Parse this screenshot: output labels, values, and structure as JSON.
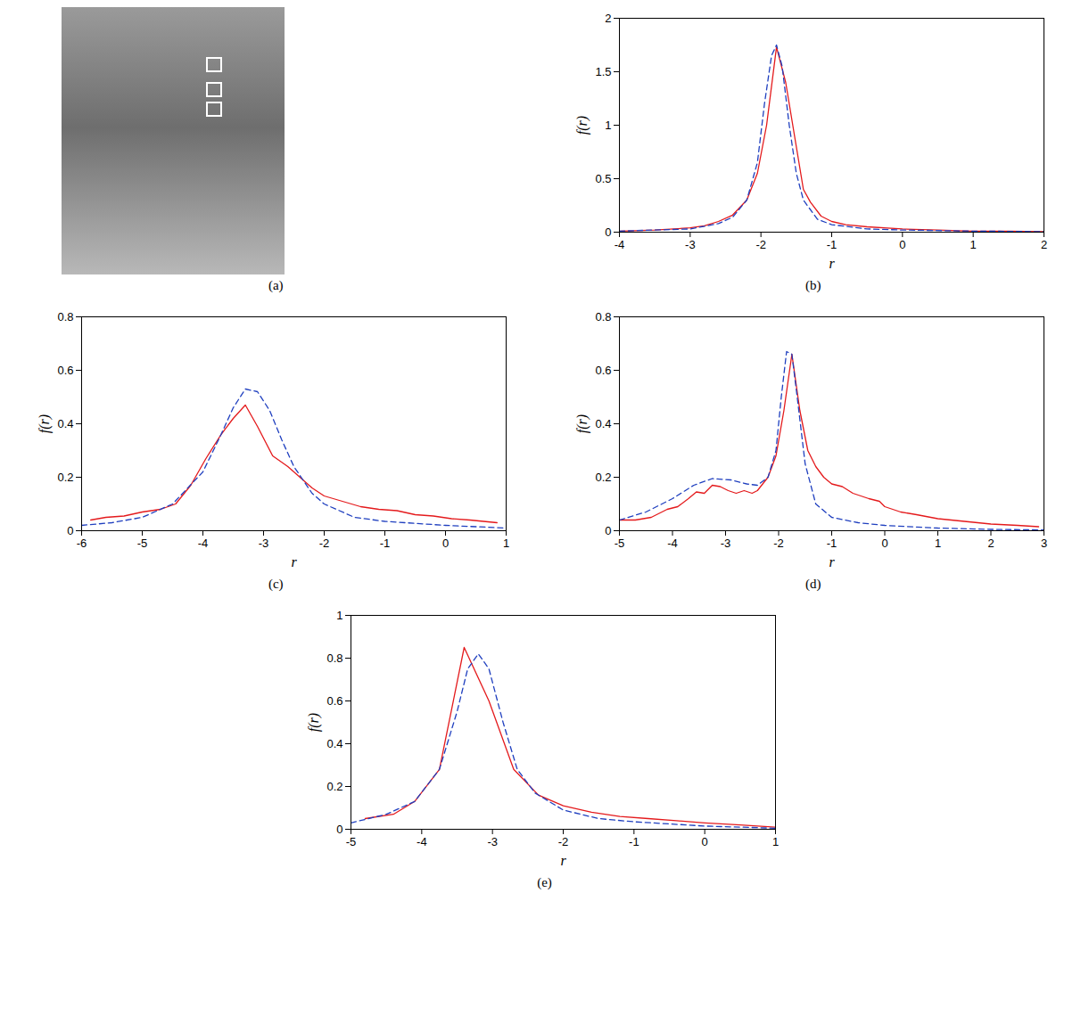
{
  "image": {
    "caption": "(a)"
  },
  "chart_data": [
    {
      "type": "line",
      "caption": "(b)",
      "x_label": "r",
      "y_label": "f(r)",
      "xlim": [
        -4,
        2
      ],
      "xticks": [
        -4,
        -3,
        -2,
        -1,
        0,
        1,
        2
      ],
      "ylim": [
        0,
        2
      ],
      "yticks": [
        0,
        0.5,
        1,
        1.5,
        2
      ],
      "series": [
        {
          "color": "#e41a1c",
          "line_style": "solid",
          "x": [
            -4,
            -3.5,
            -3,
            -2.8,
            -2.6,
            -2.4,
            -2.2,
            -2.05,
            -1.92,
            -1.78,
            -1.65,
            -1.5,
            -1.4,
            -1.3,
            -1.15,
            -1.0,
            -0.8,
            -0.5,
            0,
            0.5,
            1,
            1.5,
            2
          ],
          "values": [
            0.01,
            0.02,
            0.04,
            0.06,
            0.1,
            0.16,
            0.3,
            0.55,
            1.0,
            1.73,
            1.4,
            0.8,
            0.4,
            0.28,
            0.15,
            0.1,
            0.07,
            0.05,
            0.03,
            0.02,
            0.01,
            0.01,
            0.005
          ]
        },
        {
          "color": "#1f3fbf",
          "line_style": "dashed",
          "x": [
            -4,
            -3,
            -2.6,
            -2.4,
            -2.2,
            -2.05,
            -1.95,
            -1.85,
            -1.78,
            -1.7,
            -1.6,
            -1.5,
            -1.4,
            -1.2,
            -1.0,
            -0.5,
            0,
            1,
            2
          ],
          "values": [
            0.01,
            0.03,
            0.08,
            0.14,
            0.3,
            0.65,
            1.2,
            1.65,
            1.75,
            1.55,
            1.0,
            0.55,
            0.3,
            0.12,
            0.07,
            0.03,
            0.02,
            0.01,
            0.005
          ]
        }
      ]
    },
    {
      "type": "line",
      "caption": "(c)",
      "x_label": "r",
      "y_label": "f(r)",
      "xlim": [
        -6,
        1
      ],
      "xticks": [
        -6,
        -5,
        -4,
        -3,
        -2,
        -1,
        0,
        1
      ],
      "ylim": [
        0,
        0.8
      ],
      "yticks": [
        0,
        0.2,
        0.4,
        0.6,
        0.8
      ],
      "series": [
        {
          "color": "#e41a1c",
          "line_style": "solid",
          "x": [
            -5.85,
            -5.6,
            -5.3,
            -5,
            -4.7,
            -4.45,
            -4.2,
            -3.95,
            -3.7,
            -3.5,
            -3.3,
            -3.1,
            -2.85,
            -2.6,
            -2.4,
            -2.2,
            -2.0,
            -1.7,
            -1.4,
            -1.1,
            -0.8,
            -0.5,
            -0.2,
            0.1,
            0.4,
            0.85
          ],
          "values": [
            0.04,
            0.05,
            0.055,
            0.07,
            0.08,
            0.1,
            0.17,
            0.27,
            0.36,
            0.42,
            0.47,
            0.39,
            0.28,
            0.24,
            0.2,
            0.16,
            0.13,
            0.11,
            0.09,
            0.08,
            0.075,
            0.06,
            0.055,
            0.045,
            0.04,
            0.03
          ]
        },
        {
          "color": "#1f3fbf",
          "line_style": "dashed",
          "x": [
            -6,
            -5.5,
            -5,
            -4.5,
            -4,
            -3.7,
            -3.5,
            -3.3,
            -3.1,
            -2.9,
            -2.7,
            -2.5,
            -2.2,
            -2,
            -1.5,
            -1,
            0,
            1
          ],
          "values": [
            0.02,
            0.03,
            0.05,
            0.1,
            0.22,
            0.36,
            0.46,
            0.53,
            0.52,
            0.45,
            0.34,
            0.24,
            0.14,
            0.1,
            0.05,
            0.035,
            0.02,
            0.01
          ]
        }
      ]
    },
    {
      "type": "line",
      "caption": "(d)",
      "x_label": "r",
      "y_label": "f(r)",
      "xlim": [
        -5,
        3
      ],
      "xticks": [
        -5,
        -4,
        -3,
        -2,
        -1,
        0,
        1,
        2,
        3
      ],
      "ylim": [
        0,
        0.8
      ],
      "yticks": [
        0,
        0.2,
        0.4,
        0.6,
        0.8
      ],
      "series": [
        {
          "color": "#e41a1c",
          "line_style": "solid",
          "x": [
            -5,
            -4.7,
            -4.4,
            -4.1,
            -3.9,
            -3.7,
            -3.55,
            -3.4,
            -3.25,
            -3.1,
            -2.95,
            -2.8,
            -2.65,
            -2.5,
            -2.4,
            -2.2,
            -2.05,
            -1.9,
            -1.75,
            -1.6,
            -1.45,
            -1.3,
            -1.15,
            -1.0,
            -0.8,
            -0.6,
            -0.3,
            -0.1,
            0,
            0.3,
            0.6,
            1,
            1.5,
            2,
            2.5,
            2.9
          ],
          "values": [
            0.04,
            0.04,
            0.05,
            0.08,
            0.09,
            0.12,
            0.145,
            0.14,
            0.17,
            0.165,
            0.15,
            0.14,
            0.15,
            0.14,
            0.15,
            0.2,
            0.28,
            0.45,
            0.66,
            0.45,
            0.3,
            0.24,
            0.2,
            0.175,
            0.165,
            0.14,
            0.12,
            0.11,
            0.09,
            0.07,
            0.06,
            0.045,
            0.035,
            0.025,
            0.02,
            0.015
          ]
        },
        {
          "color": "#1f3fbf",
          "line_style": "dashed",
          "x": [
            -5,
            -4.5,
            -4,
            -3.6,
            -3.25,
            -2.9,
            -2.6,
            -2.4,
            -2.2,
            -2.05,
            -1.95,
            -1.85,
            -1.75,
            -1.65,
            -1.5,
            -1.3,
            -1,
            -0.5,
            0,
            1,
            2,
            3
          ],
          "values": [
            0.04,
            0.07,
            0.12,
            0.17,
            0.195,
            0.19,
            0.175,
            0.17,
            0.2,
            0.3,
            0.5,
            0.67,
            0.66,
            0.5,
            0.25,
            0.1,
            0.05,
            0.03,
            0.02,
            0.01,
            0.005,
            0.003
          ]
        }
      ]
    },
    {
      "type": "line",
      "caption": "(e)",
      "x_label": "r",
      "y_label": "f(r)",
      "xlim": [
        -5,
        1
      ],
      "xticks": [
        -5,
        -4,
        -3,
        -2,
        -1,
        0,
        1
      ],
      "ylim": [
        0,
        1
      ],
      "yticks": [
        0,
        0.2,
        0.4,
        0.6,
        0.8,
        1
      ],
      "series": [
        {
          "color": "#e41a1c",
          "line_style": "solid",
          "x": [
            -4.8,
            -4.4,
            -4.1,
            -3.75,
            -3.4,
            -3.05,
            -2.7,
            -2.35,
            -2,
            -1.6,
            -1.2,
            -0.8,
            -0.4,
            0,
            0.5,
            1
          ],
          "values": [
            0.05,
            0.07,
            0.13,
            0.28,
            0.85,
            0.6,
            0.28,
            0.16,
            0.11,
            0.08,
            0.06,
            0.05,
            0.04,
            0.03,
            0.02,
            0.01
          ]
        },
        {
          "color": "#1f3fbf",
          "line_style": "dashed",
          "x": [
            -5,
            -4.5,
            -4.1,
            -3.75,
            -3.5,
            -3.35,
            -3.2,
            -3.05,
            -2.85,
            -2.65,
            -2.4,
            -2,
            -1.5,
            -1,
            0,
            1
          ],
          "values": [
            0.03,
            0.07,
            0.13,
            0.28,
            0.55,
            0.75,
            0.82,
            0.75,
            0.5,
            0.28,
            0.17,
            0.09,
            0.05,
            0.035,
            0.015,
            0.005
          ]
        }
      ]
    }
  ]
}
